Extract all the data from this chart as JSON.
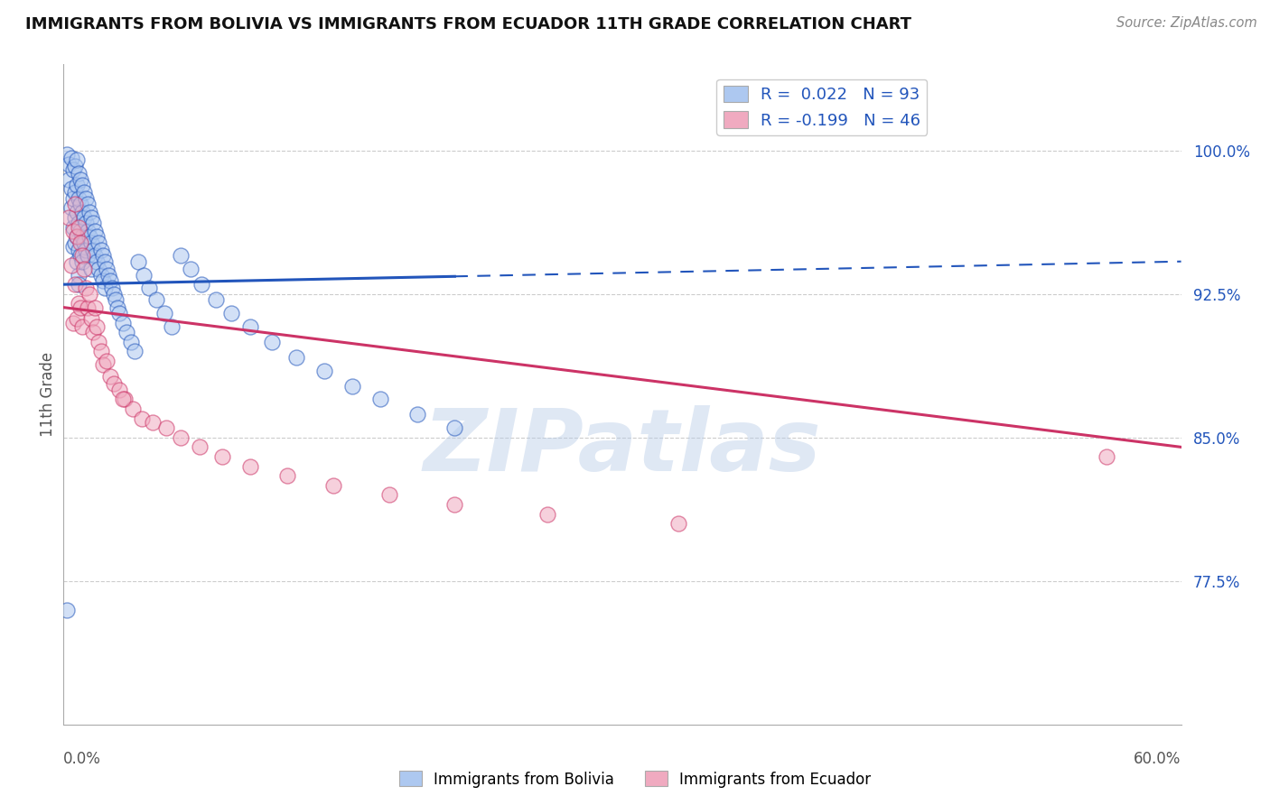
{
  "title": "IMMIGRANTS FROM BOLIVIA VS IMMIGRANTS FROM ECUADOR 11TH GRADE CORRELATION CHART",
  "source": "Source: ZipAtlas.com",
  "ylabel": "11th Grade",
  "ytick_labels": [
    "77.5%",
    "85.0%",
    "92.5%",
    "100.0%"
  ],
  "ytick_values": [
    0.775,
    0.85,
    0.925,
    1.0
  ],
  "xlim": [
    0.0,
    0.6
  ],
  "ylim": [
    0.7,
    1.045
  ],
  "bolivia_color": "#adc8f0",
  "ecuador_color": "#f0aac0",
  "bolivia_line_color": "#2255bb",
  "ecuador_line_color": "#cc3366",
  "bolivia_R": 0.022,
  "bolivia_N": 93,
  "ecuador_R": -0.199,
  "ecuador_N": 46,
  "background_color": "#ffffff",
  "grid_color": "#cccccc",
  "title_color": "#111111",
  "watermark_text": "ZIPatlas",
  "watermark_color": "#b8cce8",
  "watermark_alpha": 0.45,
  "bolivia_scatter_x": [
    0.002,
    0.003,
    0.003,
    0.004,
    0.004,
    0.004,
    0.005,
    0.005,
    0.005,
    0.005,
    0.006,
    0.006,
    0.006,
    0.006,
    0.007,
    0.007,
    0.007,
    0.007,
    0.007,
    0.008,
    0.008,
    0.008,
    0.008,
    0.008,
    0.009,
    0.009,
    0.009,
    0.009,
    0.01,
    0.01,
    0.01,
    0.01,
    0.011,
    0.011,
    0.011,
    0.012,
    0.012,
    0.012,
    0.013,
    0.013,
    0.013,
    0.014,
    0.014,
    0.015,
    0.015,
    0.015,
    0.016,
    0.016,
    0.017,
    0.017,
    0.018,
    0.018,
    0.019,
    0.019,
    0.02,
    0.02,
    0.021,
    0.021,
    0.022,
    0.022,
    0.023,
    0.024,
    0.025,
    0.026,
    0.027,
    0.028,
    0.029,
    0.03,
    0.032,
    0.034,
    0.036,
    0.038,
    0.04,
    0.043,
    0.046,
    0.05,
    0.054,
    0.058,
    0.063,
    0.068,
    0.074,
    0.082,
    0.09,
    0.1,
    0.112,
    0.125,
    0.14,
    0.155,
    0.17,
    0.19,
    0.21,
    0.002,
    0.008
  ],
  "bolivia_scatter_y": [
    0.998,
    0.985,
    0.993,
    0.996,
    0.98,
    0.97,
    0.99,
    0.975,
    0.96,
    0.95,
    0.992,
    0.978,
    0.965,
    0.952,
    0.995,
    0.982,
    0.968,
    0.955,
    0.942,
    0.988,
    0.975,
    0.962,
    0.948,
    0.935,
    0.985,
    0.972,
    0.958,
    0.945,
    0.982,
    0.968,
    0.955,
    0.942,
    0.978,
    0.965,
    0.952,
    0.975,
    0.962,
    0.948,
    0.972,
    0.958,
    0.945,
    0.968,
    0.955,
    0.965,
    0.952,
    0.938,
    0.962,
    0.948,
    0.958,
    0.945,
    0.955,
    0.942,
    0.952,
    0.938,
    0.948,
    0.935,
    0.945,
    0.932,
    0.942,
    0.928,
    0.938,
    0.935,
    0.932,
    0.928,
    0.925,
    0.922,
    0.918,
    0.915,
    0.91,
    0.905,
    0.9,
    0.895,
    0.942,
    0.935,
    0.928,
    0.922,
    0.915,
    0.908,
    0.945,
    0.938,
    0.93,
    0.922,
    0.915,
    0.908,
    0.9,
    0.892,
    0.885,
    0.877,
    0.87,
    0.862,
    0.855,
    0.76,
    0.93
  ],
  "ecuador_scatter_x": [
    0.003,
    0.004,
    0.005,
    0.005,
    0.006,
    0.006,
    0.007,
    0.007,
    0.008,
    0.008,
    0.009,
    0.009,
    0.01,
    0.01,
    0.011,
    0.012,
    0.013,
    0.014,
    0.015,
    0.016,
    0.017,
    0.018,
    0.019,
    0.02,
    0.021,
    0.023,
    0.025,
    0.027,
    0.03,
    0.033,
    0.037,
    0.042,
    0.048,
    0.055,
    0.063,
    0.073,
    0.085,
    0.1,
    0.12,
    0.145,
    0.175,
    0.21,
    0.26,
    0.33,
    0.56,
    0.032
  ],
  "ecuador_scatter_y": [
    0.965,
    0.94,
    0.958,
    0.91,
    0.972,
    0.93,
    0.955,
    0.912,
    0.96,
    0.92,
    0.952,
    0.918,
    0.945,
    0.908,
    0.938,
    0.928,
    0.918,
    0.925,
    0.912,
    0.905,
    0.918,
    0.908,
    0.9,
    0.895,
    0.888,
    0.89,
    0.882,
    0.878,
    0.875,
    0.87,
    0.865,
    0.86,
    0.858,
    0.855,
    0.85,
    0.845,
    0.84,
    0.835,
    0.83,
    0.825,
    0.82,
    0.815,
    0.81,
    0.805,
    0.84,
    0.87
  ],
  "bolivia_trend_x0": 0.0,
  "bolivia_trend_x_solid_end": 0.21,
  "bolivia_trend_x1": 0.6,
  "bolivia_trend_y0": 0.93,
  "bolivia_trend_y1": 0.942,
  "ecuador_trend_x0": 0.0,
  "ecuador_trend_x1": 0.6,
  "ecuador_trend_y0": 0.918,
  "ecuador_trend_y1": 0.845
}
